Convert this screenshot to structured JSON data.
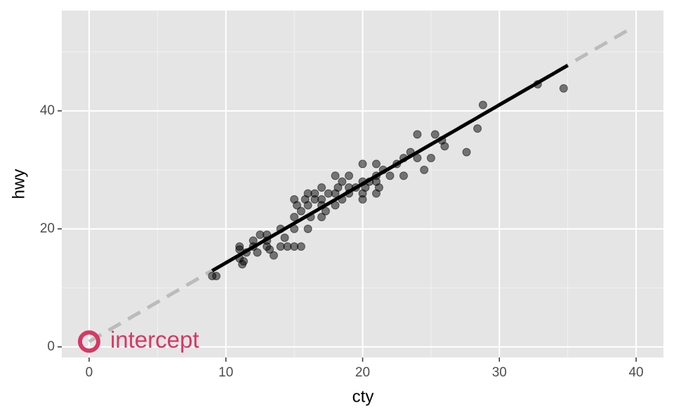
{
  "chart_data": {
    "type": "scatter",
    "xlabel": "cty",
    "ylabel": "hwy",
    "xlim": [
      -2,
      42
    ],
    "ylim": [
      -1.8,
      57
    ],
    "xticks": [
      0,
      10,
      20,
      30,
      40
    ],
    "yticks": [
      0,
      20,
      40
    ],
    "xminor": [
      5,
      15,
      25,
      35
    ],
    "yminor": [
      10,
      30,
      50
    ],
    "grid": true,
    "points": {
      "color": "#000000",
      "x": [
        9,
        9.3,
        11,
        11,
        11.2,
        11.5,
        11,
        11.3,
        12,
        12,
        12.5,
        12.3,
        13,
        13,
        13.2,
        13.5,
        13,
        14,
        14,
        14.5,
        14.3,
        15,
        15,
        15,
        15,
        15.2,
        15.5,
        15.5,
        15.8,
        16,
        16,
        16,
        16.2,
        16.5,
        16.5,
        17,
        17,
        17,
        17,
        17.3,
        17.5,
        18,
        18,
        18,
        18.2,
        18.5,
        18.5,
        19,
        19,
        19,
        19.5,
        20,
        20,
        20,
        20,
        20.2,
        20.5,
        21,
        21,
        21,
        21.2,
        21.5,
        21,
        22,
        22.5,
        23,
        23,
        23.5,
        24,
        24,
        24.5,
        25,
        25.3,
        25.8,
        26,
        27.6,
        28.4,
        28.8,
        32.8,
        34.7
      ],
      "y": [
        12,
        12,
        17,
        15,
        14,
        16,
        16.5,
        14.5,
        17,
        18,
        19,
        16,
        19,
        17,
        16.5,
        15.5,
        18,
        17,
        20,
        17,
        18.5,
        17,
        20,
        22,
        25,
        24,
        17,
        23,
        25,
        26,
        20,
        24,
        22,
        26,
        25,
        24,
        27,
        22,
        25,
        23,
        26,
        26,
        29,
        24,
        27,
        25,
        28,
        26,
        29,
        27,
        27,
        28,
        25,
        31,
        26,
        27,
        28,
        29,
        31,
        26,
        27,
        30,
        28,
        29,
        31,
        29,
        32,
        33,
        36,
        32,
        30,
        32,
        36,
        35,
        34,
        33,
        37,
        41,
        44.5,
        43.8
      ]
    },
    "lines": [
      {
        "name": "abline",
        "color": "#bbbbbb",
        "x": [
          0,
          39.5
        ],
        "y": [
          0.9,
          53.8
        ]
      },
      {
        "name": "fit",
        "color": "#000000",
        "x": [
          9,
          35
        ],
        "y": [
          12.9,
          47.7
        ]
      }
    ],
    "annotation": {
      "text": "intercept",
      "x": 0,
      "y": 0.9,
      "color": "#d63864"
    }
  }
}
